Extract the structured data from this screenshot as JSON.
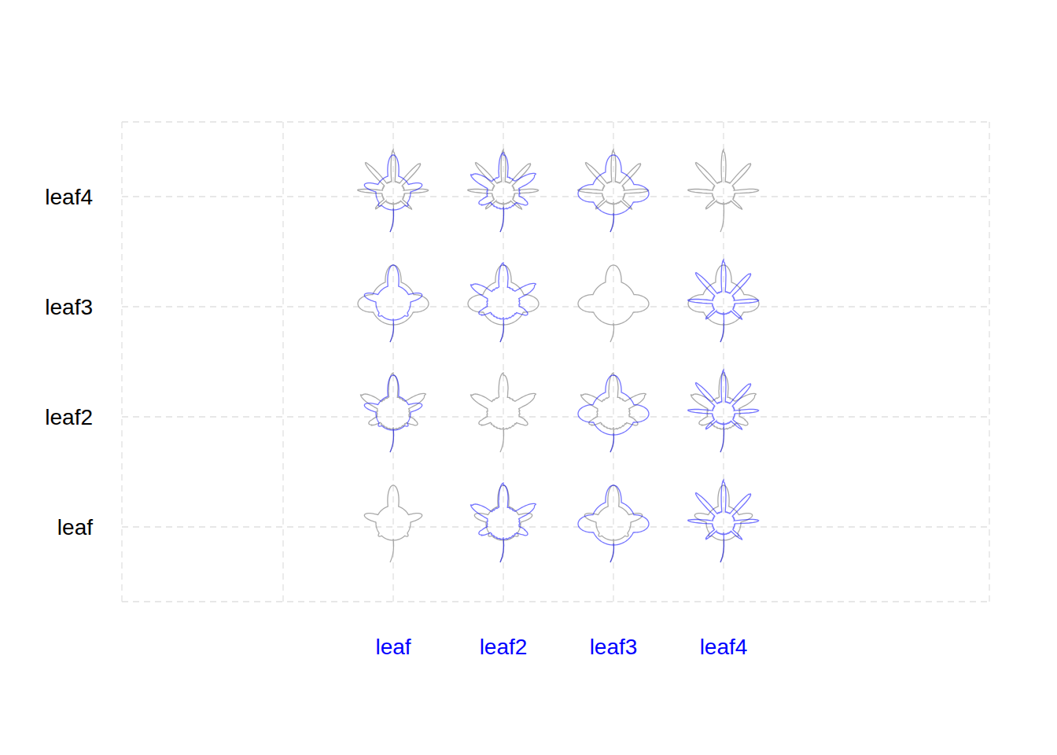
{
  "chart_data": {
    "type": "scatter",
    "x_categories": [
      null,
      "leaf",
      "leaf2",
      "leaf3",
      "leaf4"
    ],
    "y_categories": [
      "leaf",
      "leaf2",
      "leaf3",
      "leaf4"
    ],
    "grid": true,
    "color": "#0000ff"
  }
}
